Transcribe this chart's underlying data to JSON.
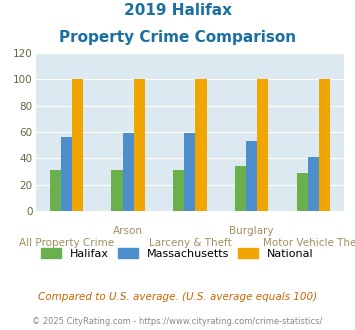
{
  "title_line1": "2019 Halifax",
  "title_line2": "Property Crime Comparison",
  "categories": [
    "All Property Crime",
    "Arson",
    "Larceny & Theft",
    "Burglary",
    "Motor Vehicle Theft"
  ],
  "top_labels": [
    "",
    "Arson",
    "",
    "Burglary",
    ""
  ],
  "bottom_labels": [
    "All Property Crime",
    "",
    "Larceny & Theft",
    "",
    "Motor Vehicle Theft"
  ],
  "halifax_values": [
    31,
    31,
    31,
    34,
    29
  ],
  "massachusetts_values": [
    56,
    59,
    59,
    53,
    41
  ],
  "national_values": [
    100,
    100,
    100,
    100,
    100
  ],
  "halifax_color": "#6ab04c",
  "massachusetts_color": "#4d8fcc",
  "national_color": "#f0a500",
  "bg_color": "#dce9f0",
  "title_color": "#1a6fa0",
  "xlabel_color": "#a09060",
  "legend_label_halifax": "Halifax",
  "legend_label_massachusetts": "Massachusetts",
  "legend_label_national": "National",
  "footnote1": "Compared to U.S. average. (U.S. average equals 100)",
  "footnote2": "© 2025 CityRating.com - https://www.cityrating.com/crime-statistics/",
  "footnote1_color": "#cc6600",
  "footnote2_color": "#888888",
  "ylim": [
    0,
    120
  ],
  "yticks": [
    0,
    20,
    40,
    60,
    80,
    100,
    120
  ],
  "bar_width": 0.18
}
